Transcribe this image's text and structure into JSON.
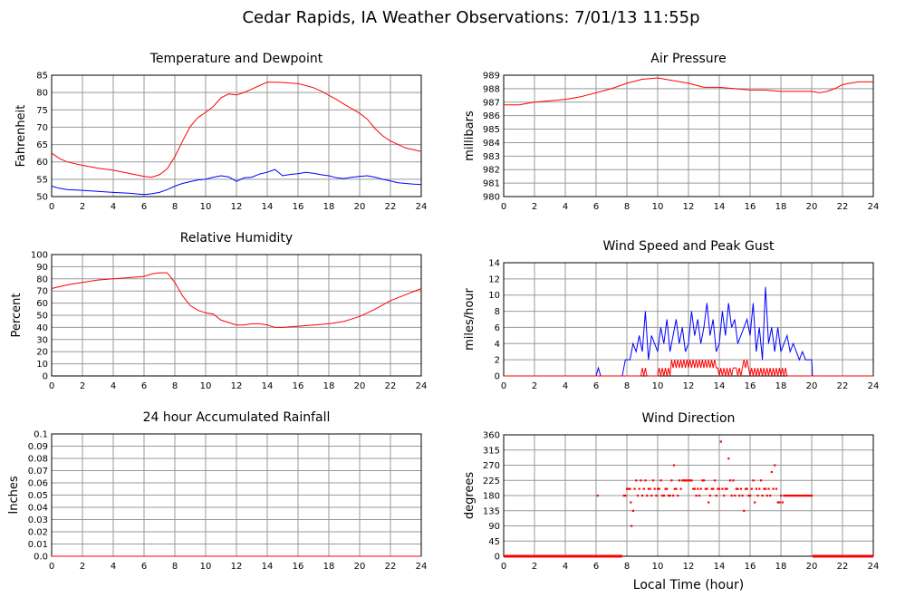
{
  "page": {
    "title": "Cedar Rapids, IA Weather Observations: 7/01/13 11:55p",
    "xaxis_label": "Local Time (hour)"
  },
  "colors": {
    "red": "#ff0000",
    "blue": "#0000ff",
    "grid": "#999999"
  },
  "chart_data": [
    {
      "type": "line",
      "title": "Temperature and Dewpoint",
      "xlabel": "",
      "ylabel": "Fahrenheit",
      "xlim": [
        0,
        24
      ],
      "ylim": [
        50,
        85
      ],
      "xticks": [
        "0",
        "2",
        "4",
        "6",
        "8",
        "10",
        "12",
        "14",
        "16",
        "18",
        "20",
        "22",
        "24"
      ],
      "yticks": [
        "50",
        "55",
        "60",
        "65",
        "70",
        "75",
        "80",
        "85"
      ],
      "grid": true,
      "series": [
        {
          "color": "#ff0000",
          "x": [
            0,
            0.5,
            1,
            2,
            3,
            4,
            5,
            6,
            6.5,
            7,
            7.5,
            8,
            8.5,
            9,
            9.5,
            10,
            10.5,
            11,
            11.5,
            12,
            12.5,
            13,
            13.5,
            14,
            14.5,
            15,
            15.5,
            16,
            16.5,
            17,
            17.5,
            18,
            18.5,
            19,
            19.5,
            20,
            20.5,
            21,
            21.5,
            22,
            22.5,
            23,
            23.5,
            24
          ],
          "y": [
            62.5,
            61,
            60,
            59,
            58.2,
            57.6,
            56.7,
            55.8,
            55.6,
            56.3,
            58,
            61.5,
            66,
            70.2,
            72.8,
            74.3,
            76,
            78.5,
            79.6,
            79.3,
            80,
            81,
            82,
            83,
            83,
            82.9,
            82.7,
            82.6,
            82,
            81.4,
            80.4,
            79.2,
            78,
            76.6,
            75.3,
            74,
            72.3,
            69.6,
            67.5,
            66,
            65,
            64,
            63.5,
            63
          ]
        },
        {
          "color": "#0000ff",
          "x": [
            0,
            0.5,
            1,
            2,
            3,
            4,
            5,
            6,
            6.5,
            7,
            7.5,
            8,
            8.5,
            9,
            9.5,
            10,
            10.5,
            11,
            11.5,
            12,
            12.5,
            13,
            13.5,
            14,
            14.5,
            15,
            15.5,
            16,
            16.5,
            17,
            17.5,
            18,
            18.5,
            19,
            19.5,
            20,
            20.5,
            21,
            21.5,
            22,
            22.5,
            23,
            23.5,
            24
          ],
          "y": [
            53,
            52.4,
            52,
            51.8,
            51.5,
            51.2,
            51,
            50.6,
            50.8,
            51.2,
            52,
            53,
            53.8,
            54.3,
            54.8,
            55,
            55.6,
            56,
            55.7,
            54.4,
            55.4,
            55.6,
            56.5,
            57,
            57.8,
            56,
            56.4,
            56.6,
            57,
            56.7,
            56.3,
            56,
            55.4,
            55.2,
            55.6,
            55.8,
            56,
            55.6,
            55,
            54.5,
            54,
            53.8,
            53.6,
            53.5
          ]
        }
      ]
    },
    {
      "type": "line",
      "title": "Air Pressure",
      "xlabel": "",
      "ylabel": "millibars",
      "xlim": [
        0,
        24
      ],
      "ylim": [
        980,
        989
      ],
      "xticks": [
        "0",
        "2",
        "4",
        "6",
        "8",
        "10",
        "12",
        "14",
        "16",
        "18",
        "20",
        "22",
        "24"
      ],
      "yticks": [
        "980",
        "981",
        "982",
        "983",
        "984",
        "985",
        "986",
        "987",
        "988",
        "989"
      ],
      "grid": true,
      "series": [
        {
          "color": "#ff0000",
          "x": [
            0,
            1,
            2,
            3,
            4,
            5,
            6,
            7,
            8,
            9,
            10,
            11,
            12,
            13,
            14,
            15,
            16,
            17,
            18,
            19,
            20,
            20.5,
            21,
            21.5,
            22,
            23,
            24
          ],
          "y": [
            986.8,
            986.8,
            987,
            987.1,
            987.2,
            987.4,
            987.7,
            988,
            988.4,
            988.7,
            988.8,
            988.6,
            988.4,
            988.1,
            988.1,
            988,
            987.9,
            987.9,
            987.8,
            987.8,
            987.8,
            987.7,
            987.8,
            988,
            988.3,
            988.5,
            988.5
          ]
        }
      ]
    },
    {
      "type": "line",
      "title": "Relative Humidity",
      "xlabel": "",
      "ylabel": "Percent",
      "xlim": [
        0,
        24
      ],
      "ylim": [
        0,
        100
      ],
      "xticks": [
        "0",
        "2",
        "4",
        "6",
        "8",
        "10",
        "12",
        "14",
        "16",
        "18",
        "20",
        "22",
        "24"
      ],
      "yticks": [
        "0",
        "10",
        "20",
        "30",
        "40",
        "50",
        "60",
        "70",
        "80",
        "90",
        "100"
      ],
      "grid": true,
      "series": [
        {
          "color": "#ff0000",
          "x": [
            0,
            1,
            2,
            3,
            4,
            5,
            6,
            6.5,
            7,
            7.5,
            8,
            8.5,
            9,
            9.5,
            10,
            10.5,
            11,
            11.5,
            12,
            12.5,
            13,
            13.5,
            14,
            14.5,
            15,
            16,
            17,
            18,
            19,
            20,
            21,
            22,
            23,
            24
          ],
          "y": [
            72,
            75,
            77,
            79,
            80,
            81,
            82,
            84,
            85,
            85,
            77,
            66,
            58,
            54,
            52,
            51,
            46,
            44,
            42,
            42,
            43,
            43,
            42,
            40,
            40,
            41,
            42,
            43,
            45,
            49,
            55,
            62,
            67,
            72
          ]
        }
      ]
    },
    {
      "type": "line",
      "title": "Wind Speed and Peak Gust",
      "xlabel": "",
      "ylabel": "miles/hour",
      "xlim": [
        0,
        24
      ],
      "ylim": [
        0,
        14
      ],
      "xticks": [
        "0",
        "2",
        "4",
        "6",
        "8",
        "10",
        "12",
        "14",
        "16",
        "18",
        "20",
        "22",
        "24"
      ],
      "yticks": [
        "0",
        "2",
        "4",
        "6",
        "8",
        "10",
        "12",
        "14"
      ],
      "grid": true,
      "series": [
        {
          "color": "#0000ff",
          "x": [
            0,
            6,
            6.15,
            6.3,
            7.7,
            7.9,
            8.2,
            8.4,
            8.6,
            8.8,
            9.0,
            9.2,
            9.4,
            9.6,
            9.8,
            10.0,
            10.2,
            10.4,
            10.6,
            10.8,
            11.0,
            11.2,
            11.4,
            11.6,
            11.8,
            12.0,
            12.2,
            12.4,
            12.6,
            12.8,
            13.0,
            13.2,
            13.4,
            13.6,
            13.8,
            14.0,
            14.2,
            14.4,
            14.6,
            14.8,
            15.0,
            15.2,
            15.4,
            15.6,
            15.8,
            16.0,
            16.2,
            16.4,
            16.6,
            16.8,
            17.0,
            17.2,
            17.4,
            17.6,
            17.8,
            18.0,
            18.2,
            18.4,
            18.6,
            18.8,
            19.0,
            19.2,
            19.4,
            19.6,
            19.8,
            20.0,
            20.05,
            20.1,
            24
          ],
          "y": [
            0,
            0,
            1,
            0,
            0,
            2,
            2,
            4,
            3,
            5,
            3,
            8,
            2,
            5,
            4,
            3,
            6,
            4,
            7,
            3,
            5,
            7,
            4,
            6,
            3,
            4,
            8,
            5,
            7,
            4,
            6,
            9,
            5,
            7,
            3,
            4,
            8,
            5,
            9,
            6,
            7,
            4,
            5,
            6,
            7,
            5,
            9,
            3,
            6,
            2,
            11,
            4,
            6,
            3,
            6,
            3,
            4,
            5,
            3,
            4,
            3,
            2,
            3,
            2,
            2,
            2,
            0,
            0,
            0
          ]
        },
        {
          "color": "#ff0000",
          "x": [
            0,
            8.9,
            9.0,
            9.1,
            9.2,
            9.3,
            10.0,
            10.1,
            10.2,
            10.3,
            10.4,
            10.5,
            10.6,
            10.7,
            10.8,
            10.9,
            11.0,
            11.1,
            11.2,
            11.3,
            11.4,
            11.5,
            11.6,
            11.7,
            11.8,
            11.9,
            12.0,
            12.1,
            12.2,
            12.3,
            12.4,
            12.5,
            12.6,
            12.7,
            12.8,
            12.9,
            13.0,
            13.1,
            13.2,
            13.3,
            13.4,
            13.5,
            13.6,
            13.7,
            13.8,
            13.9,
            14.0,
            14.1,
            14.2,
            14.3,
            14.4,
            14.5,
            14.6,
            14.7,
            14.8,
            14.9,
            15.0,
            15.1,
            15.2,
            15.3,
            15.4,
            15.5,
            15.6,
            15.7,
            15.8,
            15.9,
            16.0,
            16.1,
            16.2,
            16.3,
            16.4,
            16.5,
            16.6,
            16.7,
            16.8,
            16.9,
            17.0,
            17.1,
            17.2,
            17.3,
            17.4,
            17.5,
            17.6,
            17.7,
            17.8,
            17.9,
            18.0,
            18.1,
            18.2,
            18.3,
            18.4,
            18.5,
            18.6,
            24
          ],
          "y": [
            0,
            0,
            1,
            0,
            1,
            0,
            0,
            1,
            0,
            1,
            0,
            1,
            0,
            1,
            0,
            2,
            1,
            2,
            1,
            2,
            1,
            2,
            1,
            2,
            1,
            2,
            1,
            2,
            1,
            2,
            1,
            2,
            1,
            2,
            1,
            2,
            1,
            2,
            1,
            2,
            1,
            2,
            1,
            2,
            1,
            1,
            0,
            1,
            0,
            1,
            0,
            1,
            0,
            1,
            0,
            1,
            1,
            1,
            0,
            1,
            0,
            1,
            2,
            1,
            2,
            1,
            0,
            1,
            0,
            1,
            0,
            1,
            0,
            1,
            0,
            1,
            0,
            1,
            0,
            1,
            0,
            1,
            0,
            1,
            0,
            1,
            0,
            1,
            0,
            1,
            0,
            0,
            0,
            0
          ]
        }
      ]
    },
    {
      "type": "line",
      "title": "24 hour Accumulated Rainfall",
      "xlabel": "",
      "ylabel": "Inches",
      "xlim": [
        0,
        24
      ],
      "ylim": [
        0,
        0.1
      ],
      "xticks": [
        "0",
        "2",
        "4",
        "6",
        "8",
        "10",
        "12",
        "14",
        "16",
        "18",
        "20",
        "22",
        "24"
      ],
      "yticks": [
        "0.0",
        "0.01",
        "0.02",
        "0.03",
        "0.04",
        "0.05",
        "0.06",
        "0.07",
        "0.08",
        "0.09",
        "0.1"
      ],
      "grid": true,
      "series": [
        {
          "color": "#ff0000",
          "x": [
            0,
            24
          ],
          "y": [
            0,
            0
          ]
        }
      ]
    },
    {
      "type": "scatter",
      "title": "Wind Direction",
      "xlabel": "Local Time (hour)",
      "ylabel": "degrees",
      "xlim": [
        0,
        24
      ],
      "ylim": [
        0,
        360
      ],
      "xticks": [
        "0",
        "2",
        "4",
        "6",
        "8",
        "10",
        "12",
        "14",
        "16",
        "18",
        "20",
        "22",
        "24"
      ],
      "yticks": [
        "0",
        "45",
        "90",
        "135",
        "180",
        "225",
        "270",
        "315",
        "360"
      ],
      "grid": true,
      "series": [
        {
          "color": "#ff0000",
          "calm_ranges": [
            [
              0,
              7.7
            ],
            [
              20.05,
              24
            ]
          ],
          "x": [
            6.1,
            7.8,
            7.9,
            8.0,
            8.1,
            8.2,
            8.25,
            8.3,
            8.4,
            8.5,
            8.6,
            8.7,
            8.8,
            8.9,
            9.0,
            9.1,
            9.2,
            9.3,
            9.4,
            9.5,
            9.6,
            9.7,
            9.8,
            9.9,
            10.0,
            10.1,
            10.2,
            10.3,
            10.4,
            10.5,
            10.6,
            10.7,
            10.8,
            10.9,
            11.0,
            11.05,
            11.1,
            11.2,
            11.3,
            11.4,
            11.5,
            11.6,
            11.7,
            11.8,
            11.9,
            12.0,
            12.1,
            12.2,
            12.3,
            12.4,
            12.5,
            12.6,
            12.7,
            12.8,
            12.9,
            13.0,
            13.1,
            13.2,
            13.3,
            13.4,
            13.5,
            13.6,
            13.7,
            13.8,
            13.9,
            14.0,
            14.1,
            14.2,
            14.3,
            14.4,
            14.5,
            14.6,
            14.7,
            14.8,
            14.9,
            15.0,
            15.1,
            15.2,
            15.3,
            15.4,
            15.5,
            15.6,
            15.7,
            15.8,
            15.9,
            16.0,
            16.1,
            16.2,
            16.3,
            16.4,
            16.5,
            16.6,
            16.7,
            16.8,
            16.9,
            17.0,
            17.1,
            17.2,
            17.3,
            17.4,
            17.5,
            17.6,
            17.7,
            17.8,
            17.9,
            18.0,
            18.1,
            18.2,
            18.3,
            18.4,
            18.5,
            18.6,
            18.7,
            18.8,
            18.9,
            19.0,
            19.1,
            19.2,
            19.3,
            19.4,
            19.5,
            19.6,
            19.7,
            19.8,
            19.9,
            20.0
          ],
          "y": [
            180,
            180,
            180,
            200,
            200,
            200,
            160,
            90,
            135,
            200,
            225,
            180,
            200,
            225,
            180,
            200,
            225,
            180,
            200,
            200,
            180,
            225,
            200,
            180,
            200,
            200,
            225,
            180,
            180,
            200,
            200,
            180,
            180,
            225,
            180,
            270,
            200,
            200,
            180,
            225,
            200,
            225,
            225,
            225,
            225,
            225,
            225,
            225,
            200,
            200,
            180,
            200,
            180,
            200,
            225,
            225,
            200,
            200,
            160,
            180,
            200,
            200,
            225,
            180,
            200,
            200,
            340,
            200,
            180,
            200,
            200,
            290,
            225,
            180,
            225,
            180,
            200,
            200,
            180,
            200,
            180,
            135,
            200,
            200,
            180,
            180,
            200,
            225,
            160,
            200,
            180,
            200,
            225,
            180,
            200,
            200,
            180,
            200,
            180,
            250,
            200,
            270,
            200,
            160,
            160,
            180,
            160,
            180,
            180,
            180,
            180,
            180,
            180,
            180,
            180,
            180,
            180,
            180,
            180,
            180,
            180,
            180,
            180,
            180,
            180,
            180
          ]
        }
      ]
    }
  ]
}
